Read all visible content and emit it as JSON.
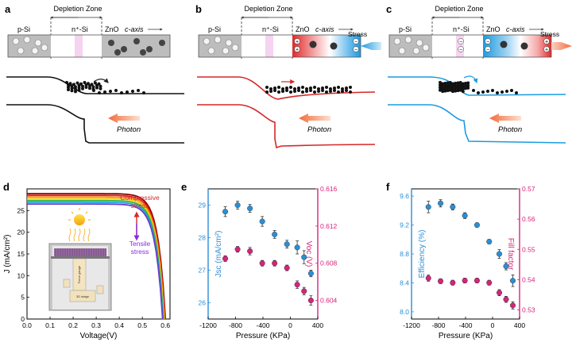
{
  "colors": {
    "compressive": "#d62728",
    "tensile": "#1b9be0",
    "neutral": "#111111",
    "jsc": "#2a8fd6",
    "voc": "#d6247a",
    "photon": "#f26b3a"
  },
  "top_panels": [
    {
      "letter": "a",
      "state": "neutral"
    },
    {
      "letter": "b",
      "state": "compressive"
    },
    {
      "letter": "c",
      "state": "tensile"
    }
  ],
  "band_labels": {
    "depletion": "Depletion Zone",
    "psi": "p-Si",
    "nsi": "n⁺-Si",
    "zno": "ZnO",
    "caxis": "c-axis",
    "stress": "Stress",
    "photon": "Photon"
  },
  "panel_d": {
    "letter": "d",
    "ylabel": "J (mA/cm²)",
    "xlabel": "Voltage(V)",
    "x_ticks": [
      "0.0",
      "0.1",
      "0.2",
      "0.3",
      "0.4",
      "0.5",
      "0.6"
    ],
    "y_ticks": [
      "0",
      "5",
      "10",
      "15",
      "20",
      "25"
    ],
    "compressive": "Compressive stress",
    "compressive_l1": "Compressive",
    "compressive_l2": "stress",
    "tensile_l1": "Tensile",
    "tensile_l2": "stress",
    "inset_gauge": "Force gauge",
    "inset_stage": "3D stage"
  },
  "chart_data": [
    {
      "type": "line",
      "panel": "d",
      "xlabel": "Voltage(V)",
      "ylabel": "J (mA/cm²)",
      "xlim": [
        0,
        0.62
      ],
      "ylim": [
        0,
        30
      ],
      "series": [
        {
          "jsc": 28.9,
          "voc": 0.6
        },
        {
          "jsc": 28.5,
          "voc": 0.598
        },
        {
          "jsc": 28.1,
          "voc": 0.596
        },
        {
          "jsc": 27.7,
          "voc": 0.594
        },
        {
          "jsc": 27.3,
          "voc": 0.592
        },
        {
          "jsc": 26.9,
          "voc": 0.59
        },
        {
          "jsc": 26.5,
          "voc": 0.588
        }
      ]
    },
    {
      "type": "scatter",
      "panel": "e",
      "xlabel": "Pressure (KPa)",
      "ylabel": "Jsc (mA/cm²)",
      "y2label": "Voc (V)",
      "xlim": [
        -1200,
        400
      ],
      "ylim": [
        25.5,
        29.5
      ],
      "y2lim": [
        0.602,
        0.616
      ],
      "x": [
        -950,
        -770,
        -590,
        -410,
        -230,
        -50,
        100,
        200,
        300
      ],
      "series": [
        {
          "name": "Jsc",
          "axis": "left",
          "values": [
            28.8,
            29.0,
            28.9,
            28.5,
            28.1,
            27.8,
            27.7,
            27.4,
            26.9
          ],
          "err": [
            0.15,
            0.12,
            0.12,
            0.15,
            0.12,
            0.12,
            0.2,
            0.2,
            0.1
          ]
        },
        {
          "name": "Voc",
          "axis": "right",
          "values": [
            0.6085,
            0.6095,
            0.6093,
            0.608,
            0.608,
            0.6075,
            0.6057,
            0.605,
            0.604
          ],
          "err": [
            0.0003,
            0.0003,
            0.0004,
            0.0003,
            0.0003,
            0.0003,
            0.0004,
            0.0004,
            0.0005
          ]
        }
      ],
      "x_ticks": [
        "-1200",
        "-800",
        "-400",
        "0",
        "400"
      ],
      "y_ticks": [
        "26",
        "27",
        "28",
        "29"
      ],
      "y2_ticks": [
        "0.604",
        "0.608",
        "0.612",
        "0.616"
      ]
    },
    {
      "type": "scatter",
      "panel": "f",
      "xlabel": "Pressure (KPa)",
      "ylabel": "Efficiency (%)",
      "y2label": "Fill factor",
      "xlim": [
        -1200,
        400
      ],
      "ylim": [
        7.9,
        9.7
      ],
      "y2lim": [
        0.527,
        0.57
      ],
      "x": [
        -950,
        -770,
        -590,
        -410,
        -230,
        -50,
        100,
        200,
        300
      ],
      "series": [
        {
          "name": "Efficiency",
          "axis": "left",
          "values": [
            9.45,
            9.5,
            9.45,
            9.33,
            9.2,
            8.97,
            8.8,
            8.63,
            8.43
          ],
          "err": [
            0.08,
            0.05,
            0.04,
            0.04,
            0.03,
            0.03,
            0.06,
            0.05,
            0.08
          ]
        },
        {
          "name": "Fill factor",
          "axis": "right",
          "values": [
            0.5405,
            0.5395,
            0.539,
            0.5397,
            0.5397,
            0.539,
            0.5357,
            0.5335,
            0.5315
          ],
          "err": [
            0.001,
            0.0008,
            0.0008,
            0.0008,
            0.0008,
            0.0008,
            0.001,
            0.001,
            0.0012
          ]
        }
      ],
      "x_ticks": [
        "-1200",
        "-800",
        "-400",
        "0",
        "400"
      ],
      "y_ticks": [
        "8.0",
        "8.4",
        "8.8",
        "9.2",
        "9.6"
      ],
      "y2_ticks": [
        "0.53",
        "0.54",
        "0.55",
        "0.56",
        "0.57"
      ]
    }
  ],
  "panel_e": {
    "letter": "e",
    "xlabel": "Pressure (KPa)",
    "ylabel": "Jsc (mA/cm²)",
    "y2label": "Voc (V)"
  },
  "panel_f": {
    "letter": "f",
    "xlabel": "Pressure (KPa)",
    "ylabel": "Efficiency (%)",
    "y2label": "Fill factor"
  }
}
